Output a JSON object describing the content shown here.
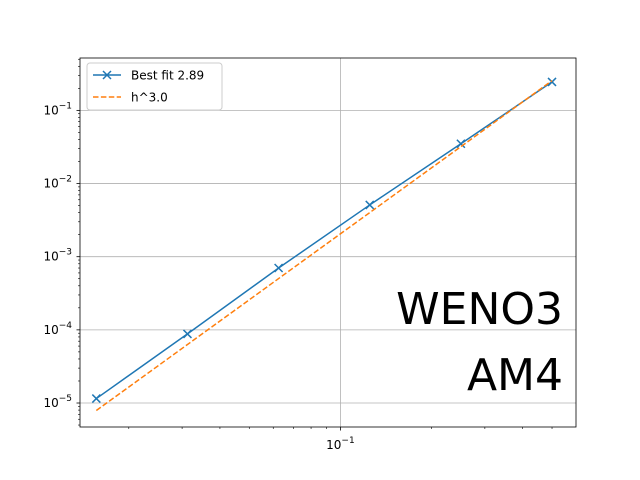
{
  "chart_data": {
    "type": "line",
    "xscale": "log",
    "yscale": "log",
    "xlim": [
      0.0138,
      0.6
    ],
    "ylim": [
      4.7e-06,
      0.52
    ],
    "grid": true,
    "legend_position": "top-left",
    "x_tick_labels": [
      {
        "value": 0.1,
        "base": "10",
        "exp": "−1"
      }
    ],
    "y_tick_labels": [
      {
        "value": 1e-05,
        "base": "10",
        "exp": "−5"
      },
      {
        "value": 0.0001,
        "base": "10",
        "exp": "−4"
      },
      {
        "value": 0.001,
        "base": "10",
        "exp": "−3"
      },
      {
        "value": 0.01,
        "base": "10",
        "exp": "−2"
      },
      {
        "value": 0.1,
        "base": "10",
        "exp": "−1"
      }
    ],
    "series": [
      {
        "name": "Best fit 2.89",
        "color": "#1f77b4",
        "style": "solid",
        "marker": "x",
        "x": [
          0.015625,
          0.03125,
          0.0625,
          0.125,
          0.25,
          0.5
        ],
        "y": [
          1.15e-05,
          8.8e-05,
          0.0007,
          0.0051,
          0.035,
          0.245
        ]
      },
      {
        "name": "h^3.0",
        "color": "#ff7f0e",
        "style": "dashed",
        "marker": null,
        "x": [
          0.015625,
          0.5
        ],
        "y": [
          7.9e-06,
          0.255
        ]
      }
    ],
    "annotations": [
      {
        "text": "WENO3"
      },
      {
        "text": "AM4"
      }
    ]
  }
}
